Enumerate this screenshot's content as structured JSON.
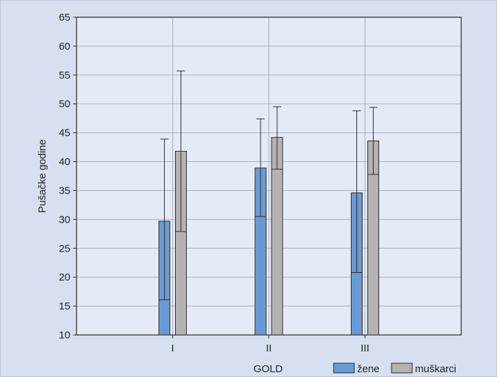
{
  "chart_data": {
    "type": "bar",
    "title": "",
    "xlabel": "GOLD",
    "ylabel": "Pušačke godine",
    "categories": [
      "I",
      "II",
      "III"
    ],
    "ylim": [
      10,
      65
    ],
    "yticks": [
      10,
      15,
      20,
      25,
      30,
      35,
      40,
      45,
      50,
      55,
      60,
      65
    ],
    "grid": true,
    "legend_position": "bottom-right",
    "series": [
      {
        "name": "žene",
        "color": "#6a9ad4",
        "values": [
          29.7,
          38.9,
          34.6
        ],
        "lower_marker": [
          16.1,
          30.5,
          20.8
        ],
        "upper_whisker": [
          43.9,
          47.4,
          48.8
        ]
      },
      {
        "name": "muškarci",
        "color": "#b3b3b3",
        "values": [
          41.8,
          44.2,
          43.6
        ],
        "lower_marker": [
          27.9,
          38.7,
          37.8
        ],
        "upper_whisker": [
          55.7,
          49.5,
          49.4
        ]
      }
    ]
  }
}
